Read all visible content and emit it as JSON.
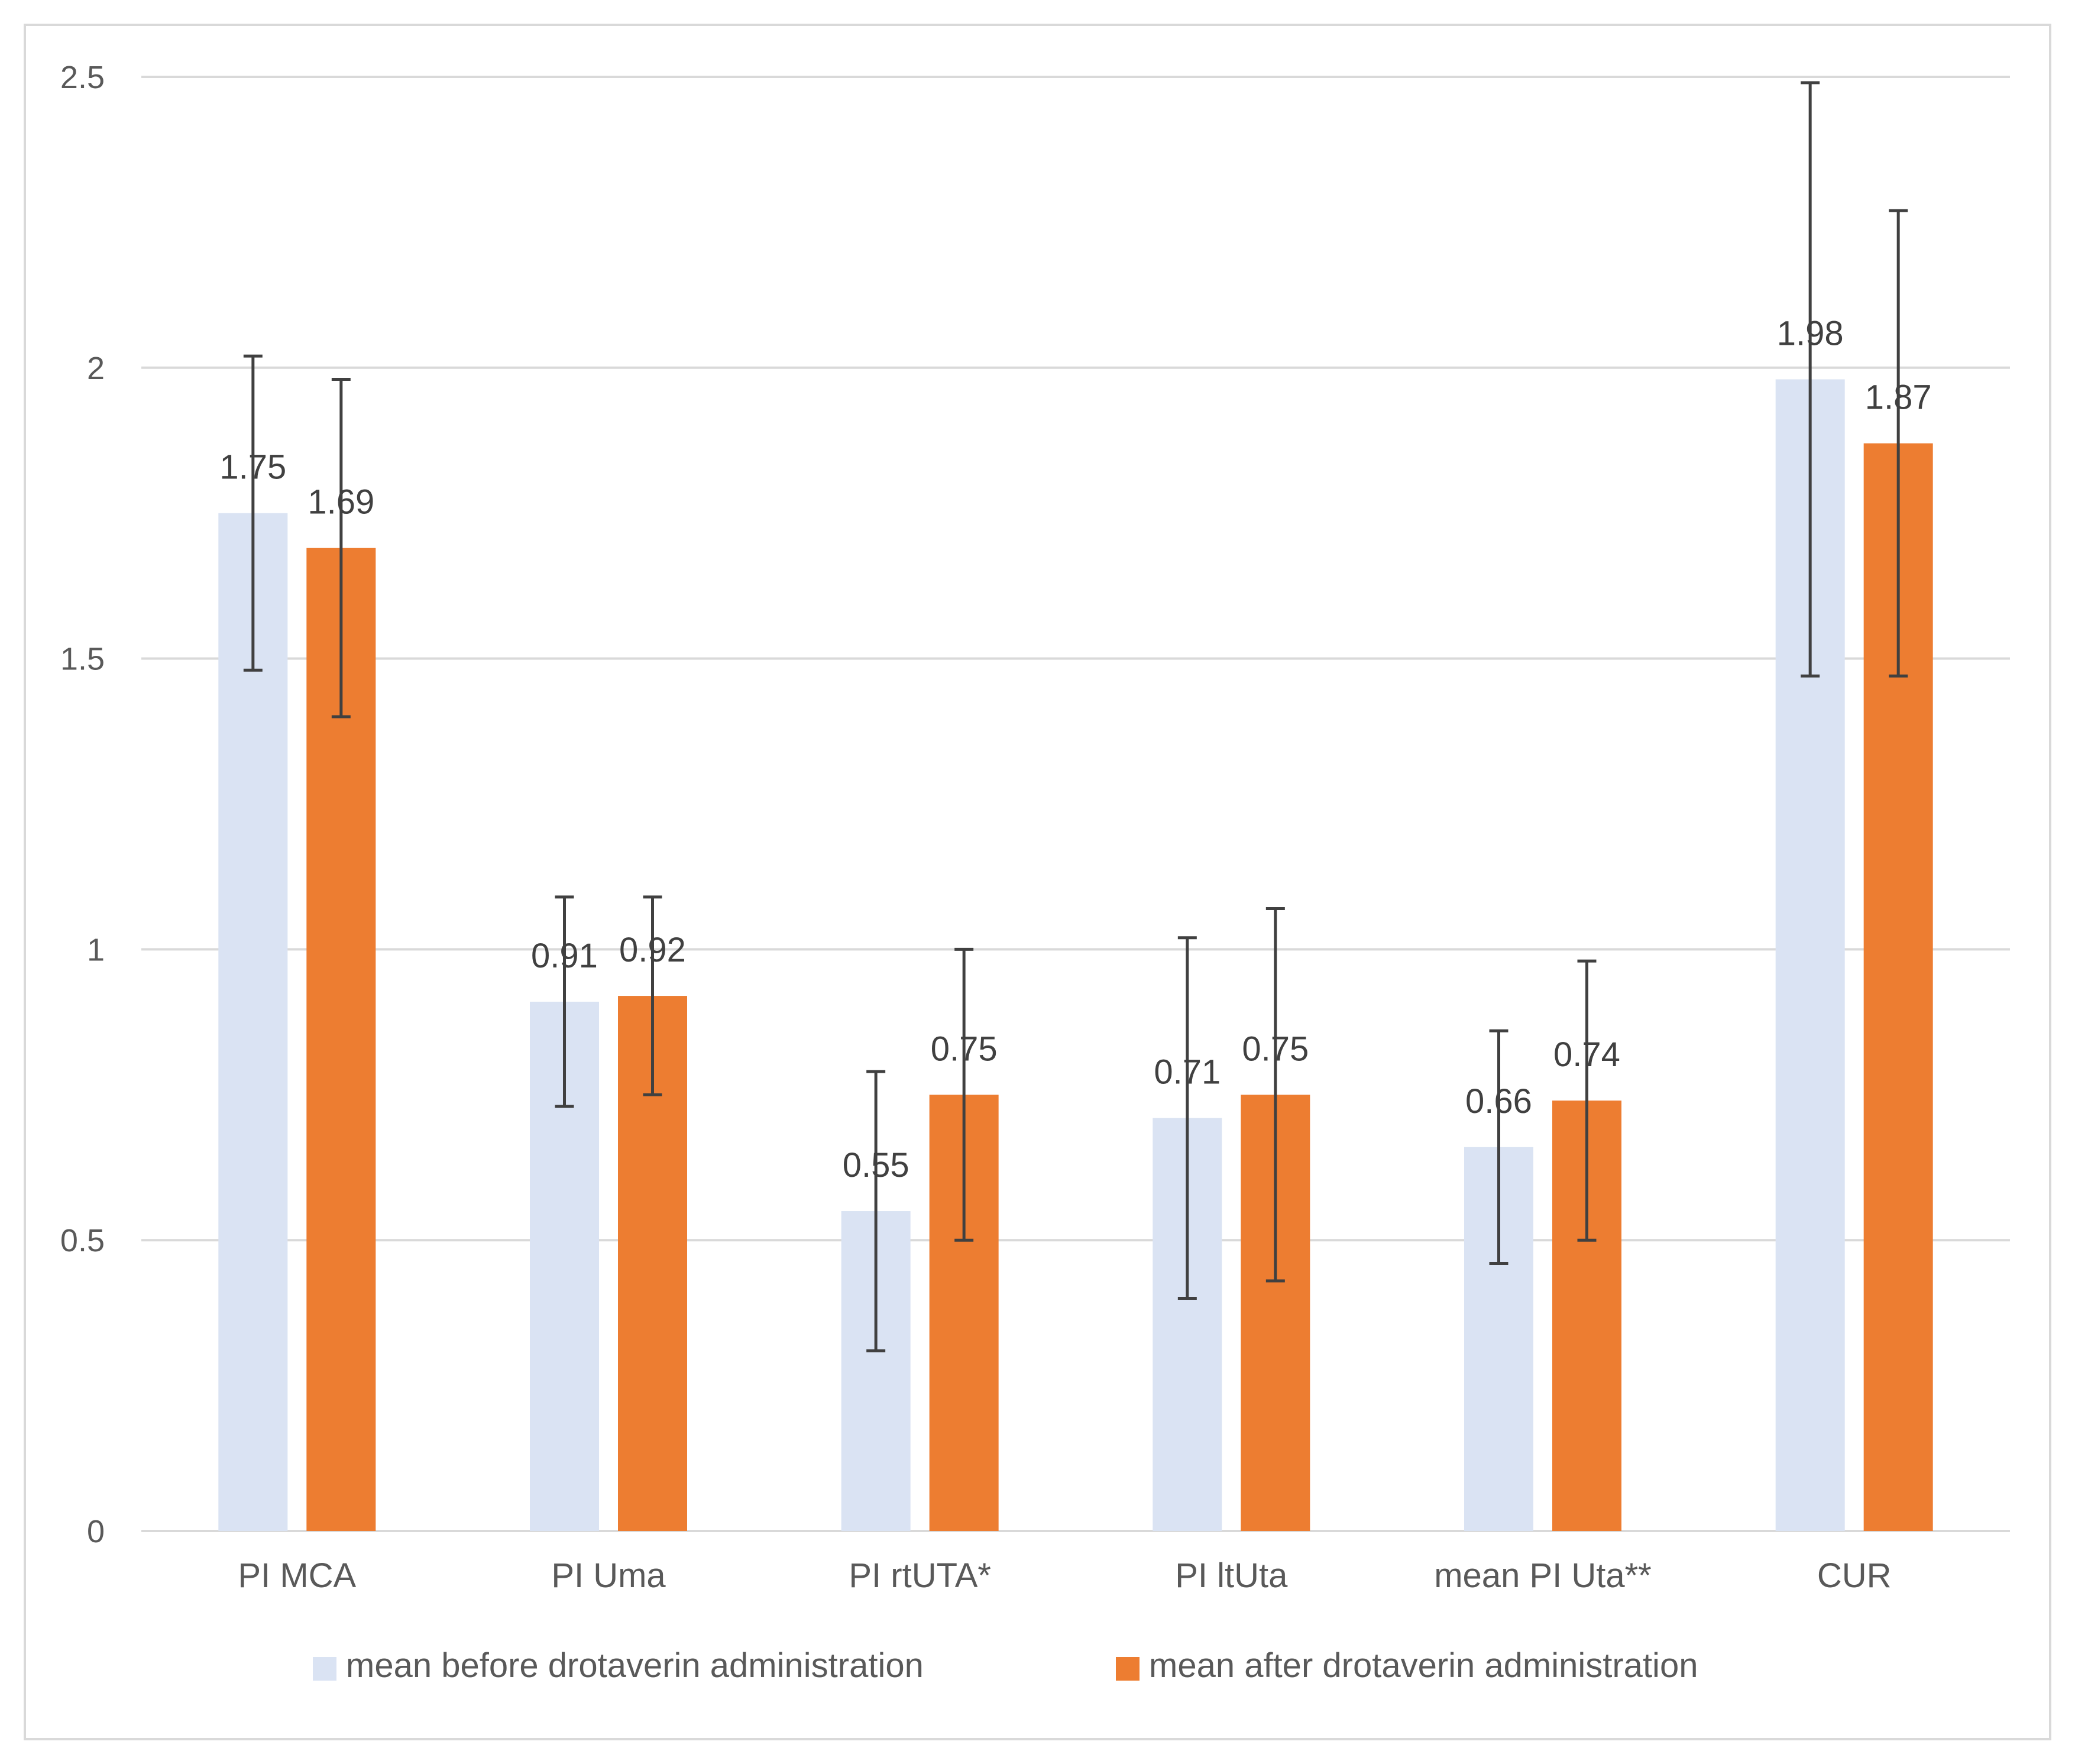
{
  "chart_data": {
    "type": "bar",
    "title": "",
    "xlabel": "",
    "ylabel": "",
    "ylim": [
      0,
      2.5
    ],
    "yticks": [
      0,
      0.5,
      1,
      1.5,
      2,
      2.5
    ],
    "ytick_labels": [
      "0",
      "0.5",
      "1",
      "1.5",
      "2",
      "2.5"
    ],
    "grid": true,
    "legend_position": "bottom",
    "categories": [
      "PI MCA",
      "PI Uma",
      "PI rtUTA*",
      "PI ltUta",
      "mean PI Uta**",
      "CUR"
    ],
    "series": [
      {
        "name": "mean before drotaverin administration",
        "color": "#dae3f3",
        "values": [
          1.75,
          0.91,
          0.55,
          0.71,
          0.66,
          1.98
        ],
        "labels": [
          "1.75",
          "0.91",
          "0.55",
          "0.71",
          "0.66",
          "1.98"
        ],
        "error_low": [
          1.48,
          0.73,
          0.31,
          0.4,
          0.46,
          1.47
        ],
        "error_high": [
          2.02,
          1.09,
          0.79,
          1.02,
          0.86,
          2.49
        ]
      },
      {
        "name": "mean after drotaverin administration",
        "color": "#ed7d31",
        "values": [
          1.69,
          0.92,
          0.75,
          0.75,
          0.74,
          1.87
        ],
        "labels": [
          "1.69",
          "0.92",
          "0.75",
          "0.75",
          "0.74",
          "1.87"
        ],
        "error_low": [
          1.4,
          0.75,
          0.5,
          0.43,
          0.5,
          1.47
        ],
        "error_high": [
          1.98,
          1.09,
          1.0,
          1.07,
          0.98,
          2.27
        ]
      }
    ]
  },
  "colors": {
    "gridline": "#d9d9d9",
    "axis": "#d9d9d9",
    "error_bar": "#404040",
    "frame": "#d9d9d9"
  }
}
